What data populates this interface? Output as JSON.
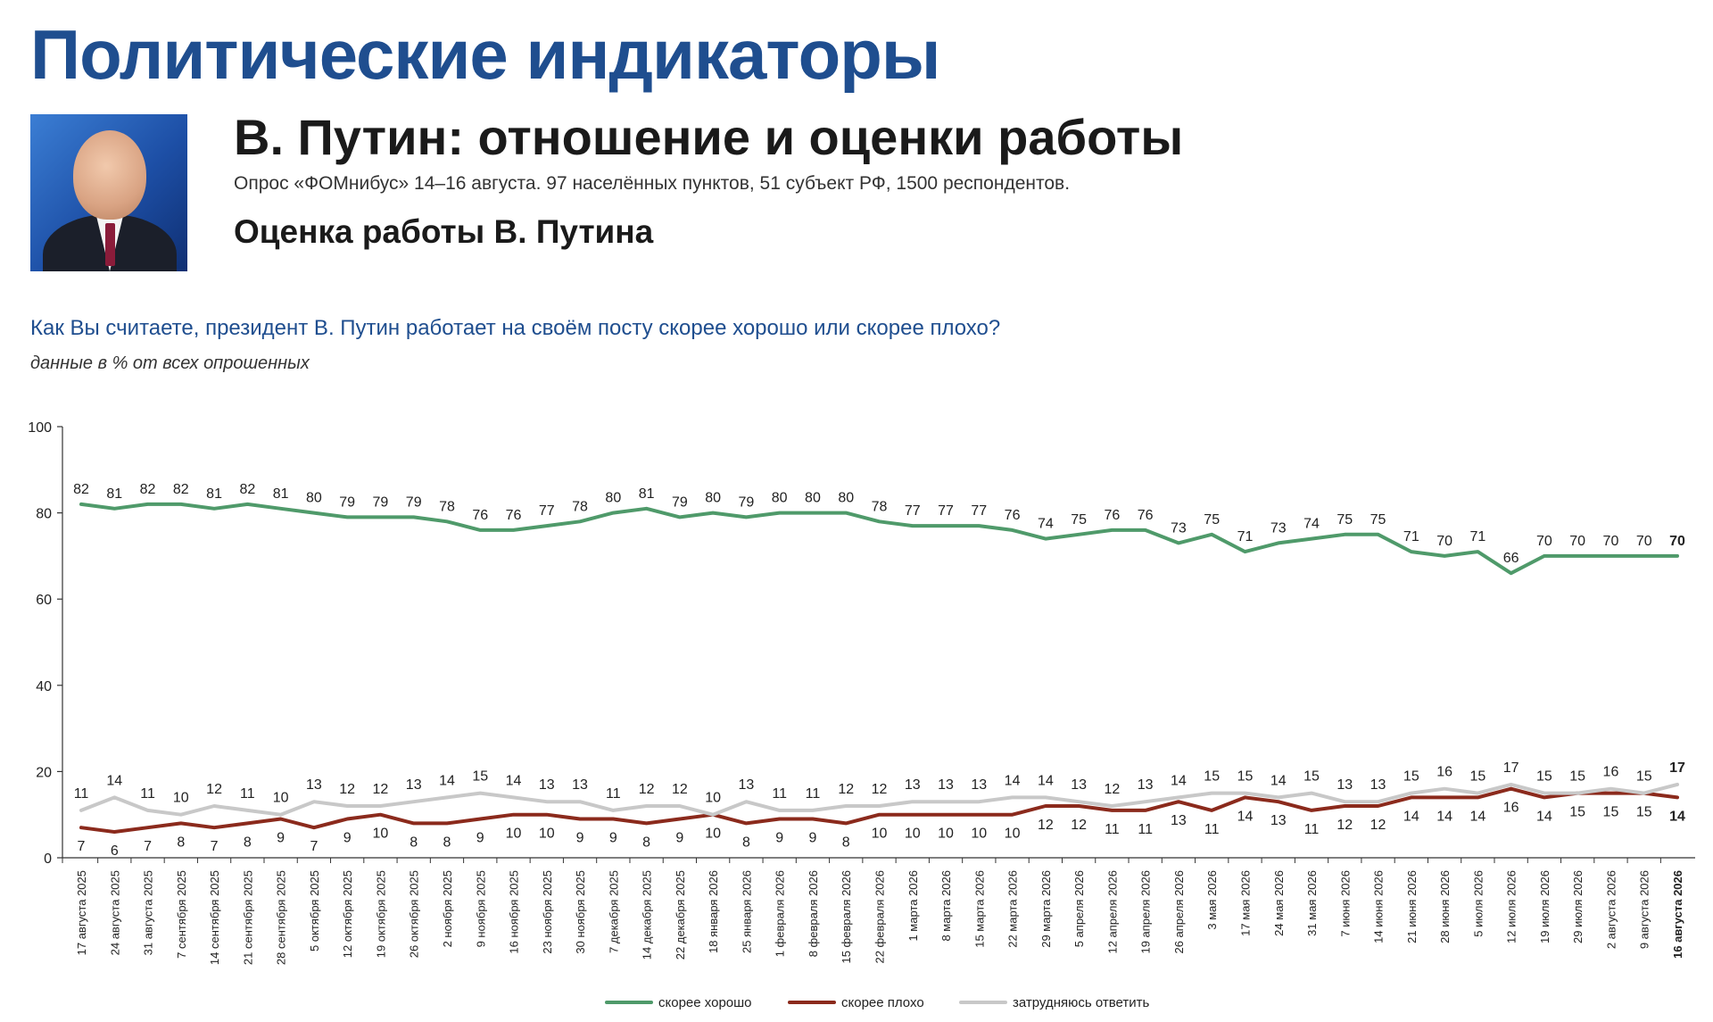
{
  "header": {
    "main_title": "Политические индикаторы",
    "subtitle": "В. Путин: отношение и оценки работы",
    "survey_note": "Опрос «ФОМнибус» 14–16 августа. 97 населённых пунктов, 51 субъект РФ, 1500 респондентов.",
    "section_title": "Оценка работы В. Путина"
  },
  "question": "Как Вы считаете, президент В. Путин работает на своём посту скорее хорошо или скорее плохо?",
  "units_note": "данные в % от всех опрошенных",
  "chart_data": {
    "type": "line",
    "x": [
      "17 августа 2025",
      "24 августа 2025",
      "31 августа 2025",
      "7 сентября 2025",
      "14 сентября 2025",
      "21 сентября 2025",
      "28 сентября 2025",
      "5 октября 2025",
      "12 октября 2025",
      "19 октября 2025",
      "26 октября 2025",
      "2 ноября 2025",
      "9 ноября 2025",
      "16 ноября 2025",
      "23 ноября 2025",
      "30 ноября 2025",
      "7 декабря 2025",
      "14 декабря 2025",
      "22 декабря 2025",
      "18 января 2026",
      "25 января 2026",
      "1 февраля 2026",
      "8 февраля 2026",
      "15 февраля 2026",
      "22 февраля 2026",
      "1 марта 2026",
      "8 марта 2026",
      "15 марта 2026",
      "22 марта 2026",
      "29 марта 2026",
      "5 апреля 2026",
      "12 апреля 2026",
      "19 апреля 2026",
      "26 апреля 2026",
      "3 мая 2026",
      "17 мая 2026",
      "24 мая 2026",
      "31 мая 2026",
      "7 июня 2026",
      "14 июня 2026",
      "21 июня 2026",
      "28 июня 2026",
      "5 июля 2026",
      "12 июля 2026",
      "19 июля 2026",
      "29 июля 2026",
      "2 августа 2026",
      "9 августа 2026",
      "16 августа 2026"
    ],
    "series": [
      {
        "name": "скорее хорошо",
        "color": "#4f9a6a",
        "values": [
          82,
          81,
          82,
          82,
          81,
          82,
          81,
          80,
          79,
          79,
          79,
          78,
          76,
          76,
          77,
          78,
          80,
          81,
          79,
          80,
          79,
          80,
          80,
          80,
          78,
          77,
          77,
          77,
          76,
          74,
          75,
          76,
          76,
          73,
          75,
          71,
          73,
          74,
          75,
          75,
          71,
          70,
          71,
          66,
          70,
          70,
          70,
          70,
          70
        ]
      },
      {
        "name": "скорее плохо",
        "color": "#8b2a1c",
        "values": [
          7,
          6,
          7,
          8,
          7,
          8,
          9,
          7,
          9,
          10,
          8,
          8,
          9,
          10,
          10,
          9,
          9,
          8,
          9,
          10,
          8,
          9,
          9,
          8,
          10,
          10,
          10,
          10,
          10,
          12,
          12,
          11,
          11,
          13,
          11,
          14,
          13,
          11,
          12,
          12,
          14,
          14,
          14,
          16,
          14,
          15,
          15,
          15,
          14
        ]
      },
      {
        "name": "затрудняюсь ответить",
        "color": "#c8c8c8",
        "values": [
          11,
          14,
          11,
          10,
          12,
          11,
          10,
          13,
          12,
          12,
          13,
          14,
          15,
          14,
          13,
          13,
          11,
          12,
          12,
          10,
          13,
          11,
          11,
          12,
          12,
          13,
          13,
          13,
          14,
          14,
          13,
          12,
          13,
          14,
          15,
          15,
          14,
          15,
          13,
          13,
          15,
          16,
          15,
          17,
          15,
          15,
          16,
          15,
          17
        ]
      }
    ],
    "y_ticks": [
      "0",
      "20",
      "40",
      "60",
      "80",
      "100"
    ],
    "ylim": [
      0,
      100
    ],
    "legend_position": "bottom-center",
    "grid": false
  }
}
